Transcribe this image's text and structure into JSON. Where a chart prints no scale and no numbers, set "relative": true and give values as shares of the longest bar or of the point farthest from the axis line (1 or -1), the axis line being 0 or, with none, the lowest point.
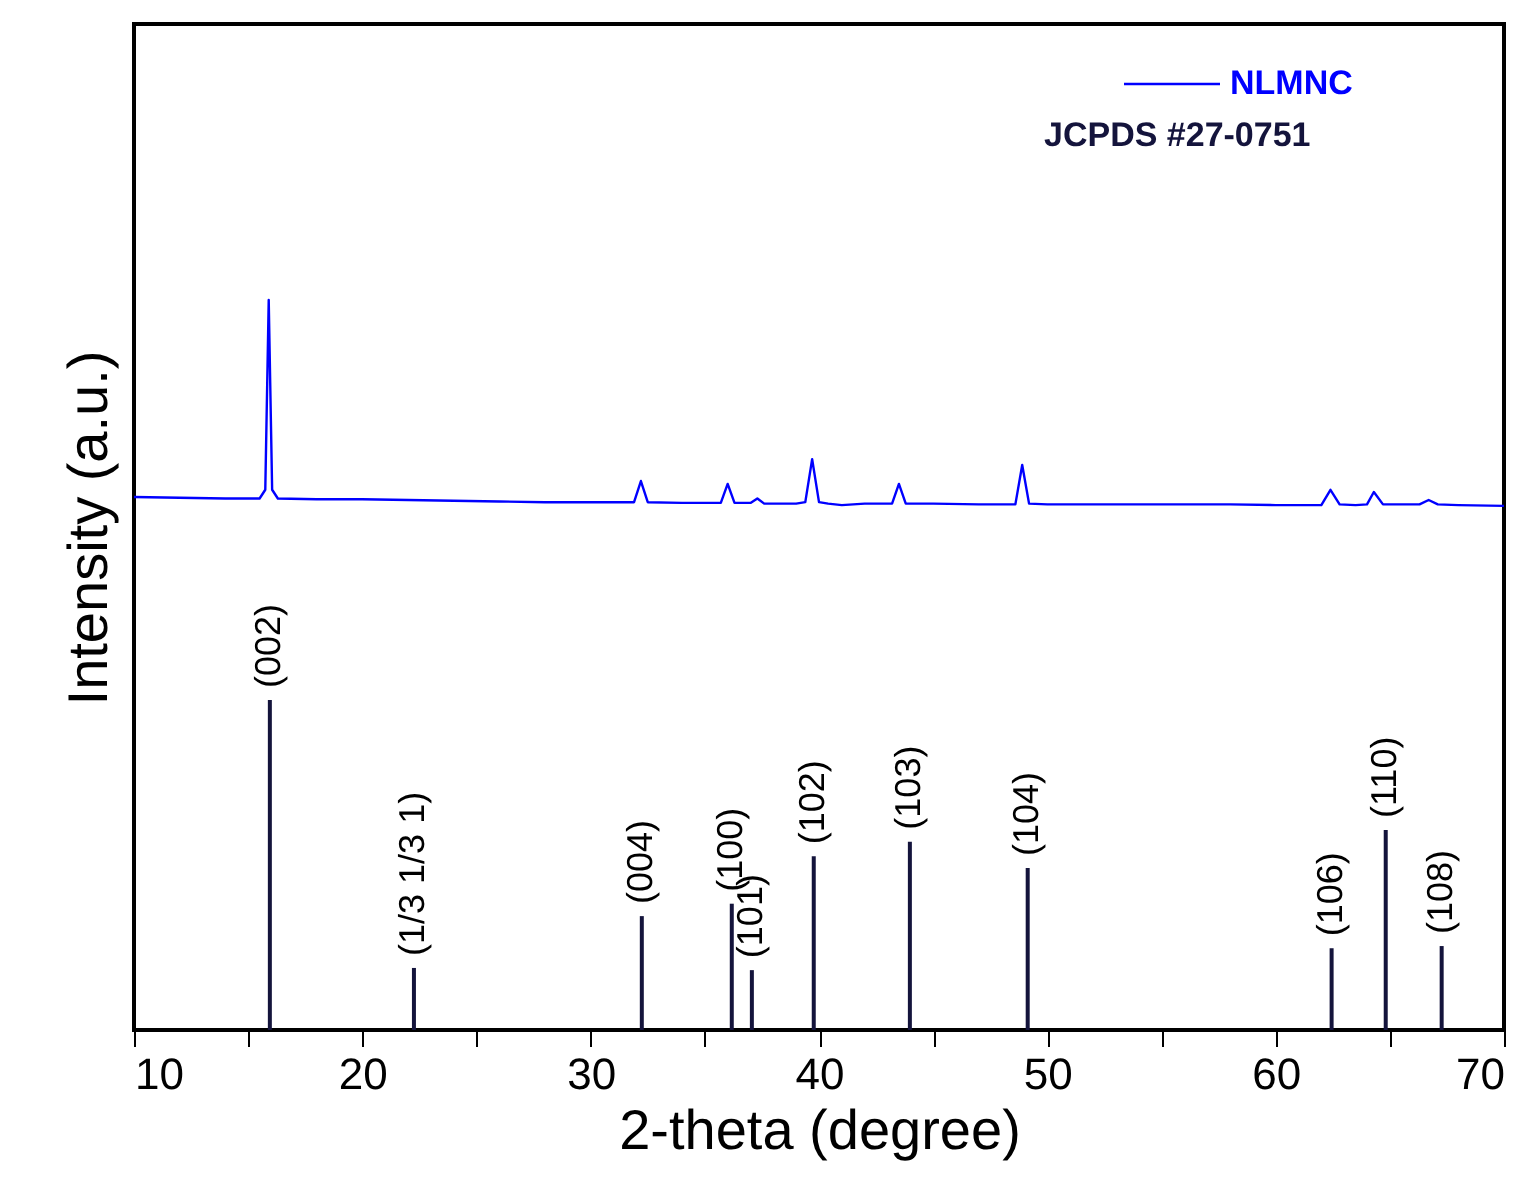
{
  "chart_data": {
    "type": "line",
    "relative": true,
    "xlabel": "2-theta (degree)",
    "ylabel": "Intensity (a.u.)",
    "legend": "top right",
    "xlim": [
      10,
      70
    ],
    "xticks": [
      10,
      {
        "value": 15,
        "label": null
      },
      20,
      {
        "value": 25,
        "label": null
      },
      30,
      {
        "value": 35,
        "label": null
      },
      40,
      {
        "value": 45,
        "label": null
      },
      50,
      {
        "value": 55,
        "label": null
      },
      60,
      {
        "value": 65,
        "label": null
      },
      70
    ],
    "series": [
      {
        "name": "NLMNC",
        "color": "#0000ff",
        "x": [
          10,
          12,
          14,
          15.5,
          15.75,
          15.9,
          16.05,
          16.3,
          18,
          20,
          22,
          24,
          26,
          28,
          30,
          31.9,
          32.2,
          32.5,
          34,
          35.7,
          36.0,
          36.3,
          37.0,
          37.3,
          37.6,
          39.0,
          39.4,
          39.7,
          40.0,
          40.4,
          41,
          42,
          43.2,
          43.5,
          43.8,
          45,
          47,
          48.6,
          48.9,
          49.2,
          50,
          52,
          54,
          56,
          58,
          60,
          62.0,
          62.4,
          62.8,
          63.5,
          64.0,
          64.3,
          64.7,
          66.3,
          66.7,
          67.1,
          68,
          70
        ],
        "values": [
          0.73,
          0.729,
          0.728,
          0.728,
          0.74,
          1.0,
          0.74,
          0.728,
          0.727,
          0.727,
          0.726,
          0.725,
          0.724,
          0.723,
          0.723,
          0.723,
          0.752,
          0.723,
          0.722,
          0.722,
          0.748,
          0.722,
          0.722,
          0.728,
          0.721,
          0.721,
          0.723,
          0.782,
          0.723,
          0.721,
          0.719,
          0.721,
          0.721,
          0.748,
          0.721,
          0.721,
          0.72,
          0.72,
          0.774,
          0.721,
          0.72,
          0.72,
          0.72,
          0.72,
          0.72,
          0.719,
          0.719,
          0.74,
          0.72,
          0.719,
          0.72,
          0.737,
          0.72,
          0.72,
          0.726,
          0.72,
          0.719,
          0.718
        ]
      },
      {
        "name": "JCPDS #27-0751",
        "type": "bar",
        "color": "#14143c",
        "x": [
          15.95,
          22.26,
          32.24,
          36.18,
          37.06,
          39.77,
          43.98,
          49.14,
          62.45,
          64.82,
          67.27
        ],
        "values": [
          0.452,
          0.085,
          0.156,
          0.173,
          0.082,
          0.238,
          0.258,
          0.222,
          0.112,
          0.274,
          0.115
        ]
      }
    ],
    "annotations": [
      {
        "text": "(002)",
        "x": 15.95,
        "y": 0.452
      },
      {
        "text": "(1/3 1/3 1)",
        "x": 22.26,
        "y": 0.085
      },
      {
        "text": "(004)",
        "x": 32.24,
        "y": 0.156
      },
      {
        "text": "(100)",
        "x": 36.18,
        "y": 0.173
      },
      {
        "text": "(101)",
        "x": 37.06,
        "y": 0.082
      },
      {
        "text": "(102)",
        "x": 39.77,
        "y": 0.238
      },
      {
        "text": "(103)",
        "x": 43.98,
        "y": 0.258
      },
      {
        "text": "(104)",
        "x": 49.14,
        "y": 0.222
      },
      {
        "text": "(106)",
        "x": 62.45,
        "y": 0.112
      },
      {
        "text": "(110)",
        "x": 64.82,
        "y": 0.274
      },
      {
        "text": "(108)",
        "x": 67.27,
        "y": 0.115
      }
    ]
  }
}
